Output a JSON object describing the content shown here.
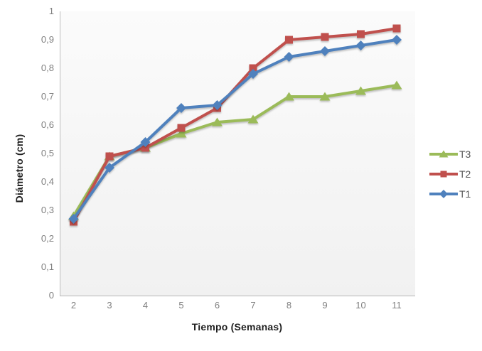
{
  "chart_data": {
    "type": "line",
    "title": "",
    "xlabel": "Tiempo (Semanas)",
    "ylabel": "Diámetro (cm)",
    "x": [
      2,
      3,
      4,
      5,
      6,
      7,
      8,
      9,
      10,
      11
    ],
    "xtick_labels": [
      "2",
      "3",
      "4",
      "5",
      "6",
      "7",
      "8",
      "9",
      "10",
      "11"
    ],
    "series": [
      {
        "name": "T3",
        "color": "#9BBB59",
        "marker": "triangle",
        "values": [
          0.28,
          0.49,
          0.52,
          0.57,
          0.61,
          0.62,
          0.7,
          0.7,
          0.72,
          0.74
        ]
      },
      {
        "name": "T2",
        "color": "#C0504D",
        "marker": "square",
        "values": [
          0.26,
          0.49,
          0.52,
          0.59,
          0.66,
          0.8,
          0.9,
          0.91,
          0.92,
          0.94
        ]
      },
      {
        "name": "T1",
        "color": "#4F81BD",
        "marker": "diamond",
        "values": [
          0.27,
          0.45,
          0.54,
          0.66,
          0.67,
          0.78,
          0.84,
          0.86,
          0.88,
          0.9
        ]
      }
    ],
    "ylim": [
      0,
      1
    ],
    "ytick_values": [
      0,
      0.1,
      0.2,
      0.3,
      0.4,
      0.5,
      0.6,
      0.7,
      0.8,
      0.9,
      1
    ],
    "ytick_labels": [
      "0",
      "0,1",
      "0,2",
      "0,3",
      "0,4",
      "0,5",
      "0,6",
      "0,7",
      "0,8",
      "0,9",
      "1"
    ],
    "decimal_style": "comma",
    "grid": false,
    "legend_position": "right",
    "legend_order_top_to_bottom": [
      "T3",
      "T2",
      "T1"
    ]
  },
  "colors": {
    "series_t1": "#4F81BD",
    "series_t2": "#C0504D",
    "series_t3": "#9BBB59",
    "axis_line": "#bdbdbd",
    "tick_text": "#7f7f7f",
    "title_text": "#1f1f1f",
    "legend_text": "#595959"
  }
}
